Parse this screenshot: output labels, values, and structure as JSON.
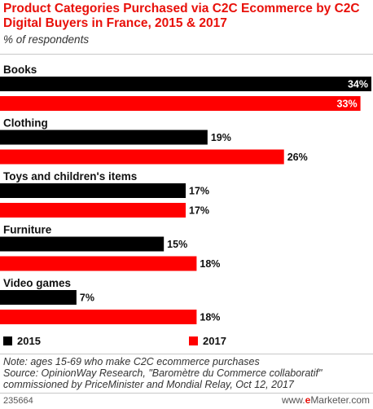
{
  "header": {
    "title": "Product Categories Purchased via C2C Ecommerce by C2C Digital Buyers in France, 2015 & 2017",
    "subtitle": "% of respondents"
  },
  "chart_data": {
    "type": "bar",
    "orientation": "horizontal",
    "categories": [
      "Books",
      "Clothing",
      "Toys and children's items",
      "Furniture",
      "Video games"
    ],
    "series": [
      {
        "name": "2015",
        "color": "#000000",
        "values": [
          34,
          19,
          17,
          15,
          7
        ]
      },
      {
        "name": "2017",
        "color": "#ff0000",
        "values": [
          33,
          26,
          17,
          18,
          18
        ]
      }
    ],
    "value_suffix": "%",
    "xlim": [
      0,
      34
    ],
    "grid": false,
    "legend_position": "bottom-left"
  },
  "legend": {
    "items": [
      {
        "label": "2015",
        "color": "#000000"
      },
      {
        "label": "2017",
        "color": "#ff0000"
      }
    ]
  },
  "notes": {
    "line1": "Note: ages 15-69 who make C2C ecommerce purchases",
    "line2": "Source: OpinionWay Research, \"Baromètre du Commerce collaboratif\"",
    "line3": "commissioned by PriceMinister and Mondial Relay, Oct 12, 2017"
  },
  "footer": {
    "chart_id": "235664",
    "brand_prefix": "www.",
    "brand_accent": "e",
    "brand_rest": "Marketer.com"
  }
}
